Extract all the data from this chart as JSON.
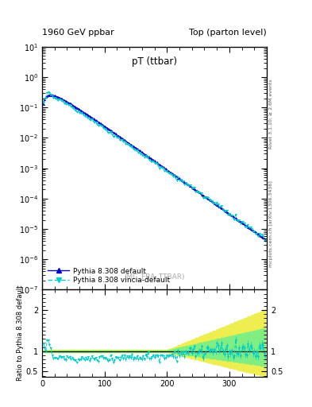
{
  "title_left": "1960 GeV ppbar",
  "title_right": "Top (parton level)",
  "main_title": "pT (ttbar)",
  "watermark": "(MC_FBA_TTBAR)",
  "right_label_top": "Rivet 3.1.10; ≥ 2.6M events",
  "right_label_bottom": "mcplots.cern.ch [arXiv:1306.3436]",
  "ylabel_ratio": "Ratio to Pythia 8.308 default",
  "ylim_main_log": [
    -7,
    1
  ],
  "ylim_ratio": [
    0.38,
    2.5
  ],
  "xmin": 0,
  "xmax": 360,
  "xticks": [
    0,
    100,
    200,
    300
  ],
  "legend_entries": [
    "Pythia 8.308 default",
    "Pythia 8.308 vincia-default"
  ],
  "color_default": "#0000CC",
  "color_vincia": "#00CCCC",
  "band_green": "#80EE80",
  "band_yellow": "#EEEE50",
  "figsize": [
    3.93,
    5.12
  ],
  "dpi": 100
}
